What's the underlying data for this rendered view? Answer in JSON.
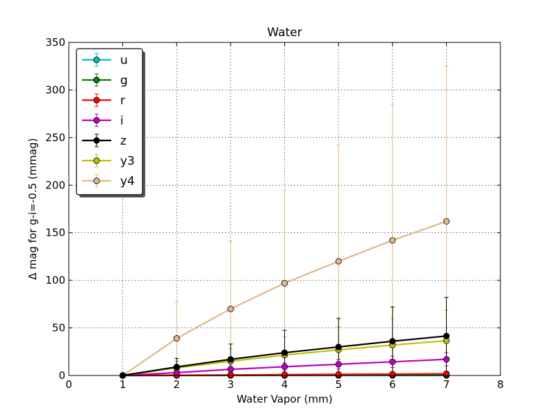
{
  "chart_data": {
    "type": "line",
    "title": "Water",
    "xlabel": "Water Vapor (mm)",
    "ylabel": "Δ mag for g-i=-0.5 (mmag)",
    "xlim": [
      0,
      8
    ],
    "ylim": [
      0,
      350
    ],
    "xticks": [
      0,
      1,
      2,
      3,
      4,
      5,
      6,
      7,
      8
    ],
    "yticks": [
      0,
      50,
      100,
      150,
      200,
      250,
      300,
      350
    ],
    "grid": true,
    "legend_position": "top-left",
    "x": [
      1,
      2,
      3,
      4,
      5,
      6,
      7
    ],
    "series": [
      {
        "name": "u",
        "color": "#00bfbf",
        "values": [
          0,
          0,
          0,
          0,
          0,
          0,
          0
        ],
        "errors": [
          0,
          0,
          0,
          0,
          0,
          0,
          0
        ]
      },
      {
        "name": "g",
        "color": "#008000",
        "values": [
          0,
          0.1,
          0.2,
          0.3,
          0.4,
          0.5,
          0.6
        ],
        "errors": [
          0,
          0.2,
          0.3,
          0.4,
          0.5,
          0.6,
          0.7
        ]
      },
      {
        "name": "r",
        "color": "#ff0000",
        "values": [
          0,
          0.3,
          0.6,
          0.9,
          1.2,
          1.5,
          1.8
        ],
        "errors": [
          0,
          0.5,
          0.8,
          1.1,
          1.4,
          1.7,
          2.0
        ]
      },
      {
        "name": "i",
        "color": "#bf00bf",
        "values": [
          0,
          3,
          6.5,
          9.2,
          11.8,
          14.4,
          17
        ],
        "errors": [
          0,
          2,
          3,
          4,
          5,
          6,
          7
        ]
      },
      {
        "name": "z",
        "color": "#000000",
        "values": [
          0,
          9,
          17,
          24,
          30,
          36,
          41.5
        ],
        "errors": [
          0,
          9,
          16,
          23.5,
          30,
          36,
          40.5
        ]
      },
      {
        "name": "y3",
        "color": "#bfbf00",
        "values": [
          0,
          8,
          15,
          21.5,
          27,
          32,
          36.5
        ],
        "errors": [
          0,
          7,
          13,
          19,
          24,
          28,
          32
        ]
      },
      {
        "name": "y4",
        "color": "#deb887",
        "values": [
          0,
          39,
          70,
          97,
          120,
          142,
          162
        ],
        "errors": [
          0,
          38.5,
          71,
          98,
          122,
          143,
          163
        ]
      }
    ]
  }
}
